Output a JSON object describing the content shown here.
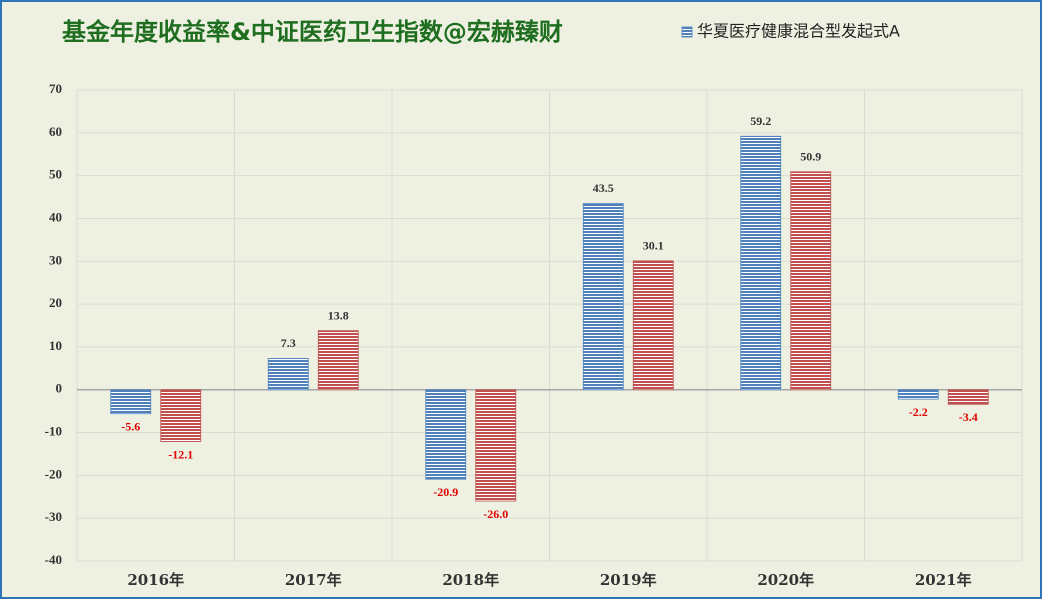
{
  "chart_data": {
    "type": "bar",
    "title": "基金年度收益率&中证医药卫生指数@宏赫臻财",
    "categories": [
      "2016年",
      "2017年",
      "2018年",
      "2019年",
      "2020年",
      "2021年"
    ],
    "series": [
      {
        "name": "华夏医疗健康混合型发起式A",
        "color": "#4f81bd",
        "values": [
          -5.6,
          7.3,
          -20.9,
          43.5,
          59.2,
          -2.2
        ]
      },
      {
        "color": "#c0504d",
        "values": [
          -12.1,
          13.8,
          -26.0,
          30.1,
          50.9,
          -3.4
        ],
        "value_labels": [
          "-12.1",
          "13.8",
          "-26.0",
          "30.1",
          "50.9",
          "-3.4"
        ]
      }
    ],
    "ylim": [
      -40,
      70
    ],
    "yticks": [
      -40,
      -30,
      -20,
      -10,
      0,
      10,
      20,
      30,
      40,
      50,
      60,
      70
    ],
    "grid": true
  }
}
